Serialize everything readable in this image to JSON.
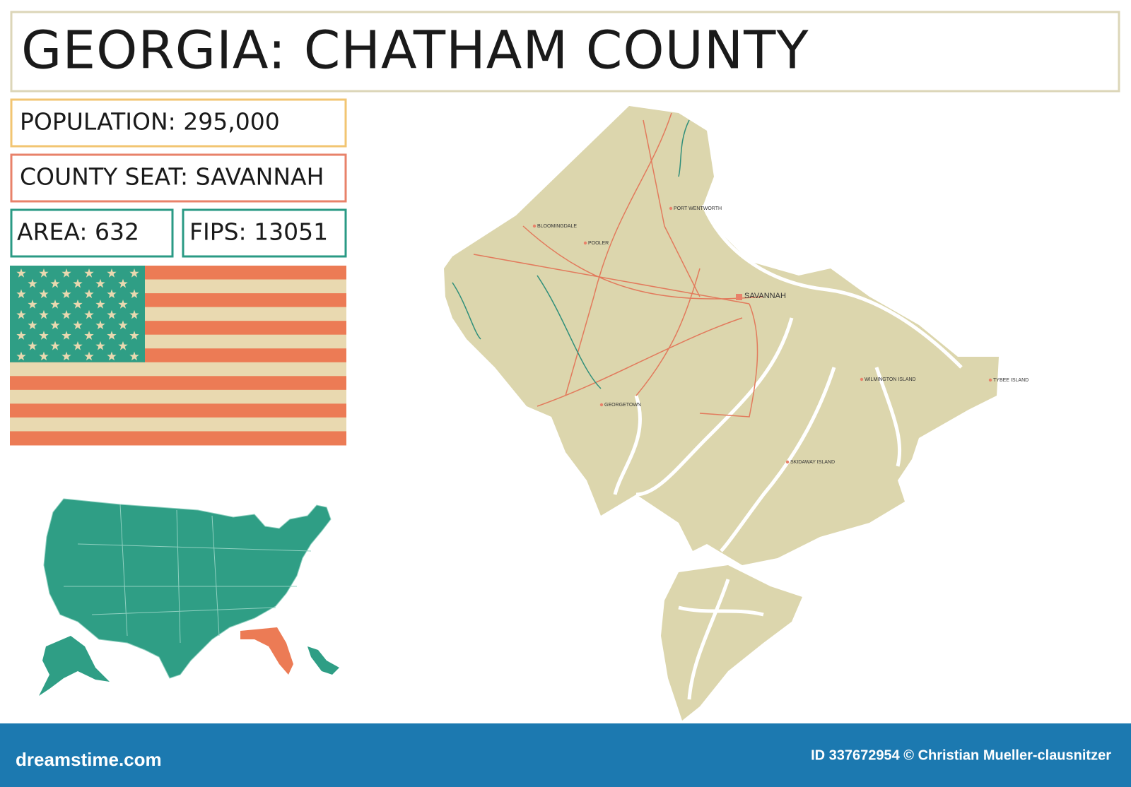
{
  "header": {
    "title": "GEORGIA: CHATHAM COUNTY"
  },
  "info": {
    "population": "POPULATION: 295,000",
    "county_seat": "COUNTY SEAT: SAVANNAH",
    "area": "AREA: 632",
    "fips": "FIPS: 13051"
  },
  "map": {
    "places": [
      "BLOOMINGDALE",
      "POOLER",
      "PORT WENTWORTH",
      "SAVANNAH",
      "GEORGETOWN",
      "WILMINGTON ISLAND",
      "TYBEE ISLAND",
      "SKIDAWAY ISLAND"
    ]
  },
  "footer": {
    "brand": "dreamstime.com",
    "credit": "ID 337672954 © Christian Mueller-clausnitzer"
  }
}
